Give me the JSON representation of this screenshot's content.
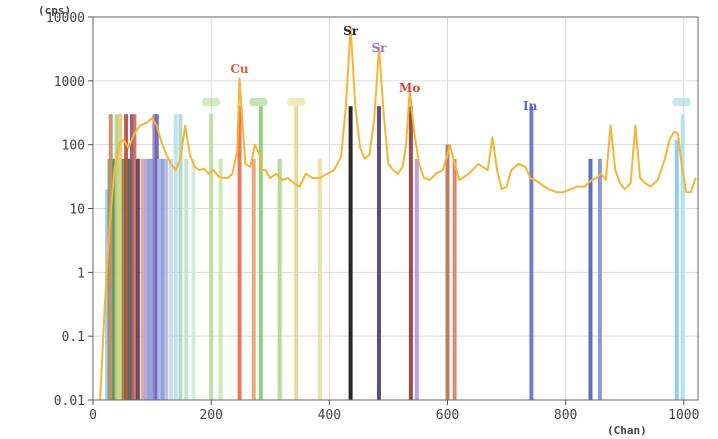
{
  "chart_data": {
    "type": "line",
    "title": "",
    "xlabel": "(Chan)",
    "ylabel": "(cps)",
    "xlim": [
      0,
      1024
    ],
    "ylim": [
      0.01,
      10000
    ],
    "y_scale": "log",
    "x_ticks": [
      0,
      200,
      400,
      600,
      800,
      1000
    ],
    "x_tick_labels": [
      "0",
      "200",
      "400",
      "600",
      "800",
      "1000"
    ],
    "y_ticks": [
      0.01,
      0.1,
      1,
      10,
      100,
      1000,
      10000
    ],
    "y_tick_labels": [
      "0.01",
      "0.1",
      "1",
      "10",
      "100",
      "1000",
      "10000"
    ],
    "grid": true,
    "spectrum": {
      "color": "#f5b535",
      "x": [
        12,
        20,
        28,
        36,
        44,
        52,
        60,
        70,
        80,
        90,
        100,
        108,
        116,
        124,
        132,
        140,
        148,
        156,
        164,
        172,
        180,
        188,
        196,
        204,
        212,
        220,
        228,
        236,
        244,
        248,
        252,
        258,
        266,
        274,
        282,
        286,
        292,
        300,
        310,
        320,
        330,
        340,
        350,
        360,
        372,
        384,
        396,
        408,
        420,
        428,
        436,
        444,
        452,
        460,
        468,
        476,
        484,
        492,
        500,
        508,
        516,
        524,
        530,
        536,
        544,
        552,
        560,
        570,
        580,
        592,
        600,
        604,
        610,
        620,
        636,
        652,
        668,
        676,
        684,
        692,
        700,
        708,
        720,
        732,
        740,
        748,
        756,
        764,
        772,
        784,
        796,
        808,
        820,
        832,
        844,
        852,
        860,
        868,
        876,
        884,
        892,
        900,
        910,
        918,
        926,
        934,
        944,
        956,
        968,
        976,
        984,
        990,
        996,
        1004,
        1012,
        1020
      ],
      "y": [
        0.01,
        0.3,
        5,
        40,
        100,
        120,
        90,
        150,
        200,
        220,
        260,
        200,
        110,
        70,
        50,
        40,
        60,
        200,
        70,
        45,
        40,
        42,
        35,
        40,
        32,
        30,
        30,
        35,
        80,
        1100,
        300,
        50,
        45,
        100,
        70,
        40,
        40,
        30,
        35,
        28,
        30,
        25,
        22,
        35,
        30,
        30,
        35,
        40,
        65,
        400,
        7000,
        400,
        90,
        60,
        70,
        250,
        3300,
        300,
        50,
        40,
        35,
        45,
        100,
        700,
        150,
        50,
        30,
        28,
        35,
        40,
        70,
        100,
        60,
        28,
        35,
        50,
        40,
        130,
        40,
        20,
        22,
        40,
        50,
        45,
        30,
        28,
        25,
        22,
        20,
        18,
        18,
        20,
        22,
        22,
        28,
        30,
        35,
        28,
        200,
        40,
        25,
        20,
        25,
        200,
        30,
        25,
        22,
        28,
        60,
        120,
        160,
        150,
        50,
        18,
        18,
        30
      ]
    },
    "peak_labels": [
      {
        "text": "Cu",
        "x": 248,
        "color": "#e05a3c"
      },
      {
        "text": "Sr",
        "x": 436,
        "color": "#222222"
      },
      {
        "text": "Sr",
        "x": 484,
        "color": "#9a6fd0"
      },
      {
        "text": "Mo",
        "x": 536,
        "color": "#c94a3a"
      },
      {
        "text": "In",
        "x": 740,
        "color": "#5a6ec8"
      }
    ],
    "faint_labels": [
      {
        "x": 200,
        "color": "#9fd36a"
      },
      {
        "x": 280,
        "color": "#7cc25a"
      },
      {
        "x": 344,
        "color": "#d7d070"
      },
      {
        "x": 996,
        "color": "#7fc7e2"
      }
    ],
    "markers": [
      {
        "x": 24,
        "y": 20,
        "color": "#9ec3ee"
      },
      {
        "x": 28,
        "y": 60,
        "color": "#6aa85a"
      },
      {
        "x": 30,
        "y": 300,
        "color": "#c48a70"
      },
      {
        "x": 36,
        "y": 60,
        "color": "#4e8a4a"
      },
      {
        "x": 40,
        "y": 300,
        "color": "#a8d48a"
      },
      {
        "x": 46,
        "y": 300,
        "color": "#e8c870"
      },
      {
        "x": 52,
        "y": 60,
        "color": "#6e8850"
      },
      {
        "x": 56,
        "y": 300,
        "color": "#b04c3a"
      },
      {
        "x": 62,
        "y": 60,
        "color": "#3a6a3a"
      },
      {
        "x": 66,
        "y": 300,
        "color": "#8a4a8a"
      },
      {
        "x": 70,
        "y": 300,
        "color": "#c86a4a"
      },
      {
        "x": 76,
        "y": 60,
        "color": "#5a3a5a"
      },
      {
        "x": 84,
        "y": 60,
        "color": "#d8a0a0"
      },
      {
        "x": 90,
        "y": 60,
        "color": "#b0a0d8"
      },
      {
        "x": 96,
        "y": 60,
        "color": "#8890d0"
      },
      {
        "x": 100,
        "y": 60,
        "color": "#a0a0e0"
      },
      {
        "x": 104,
        "y": 300,
        "color": "#9080c8"
      },
      {
        "x": 108,
        "y": 300,
        "color": "#7060a8"
      },
      {
        "x": 112,
        "y": 60,
        "color": "#a8b8e8"
      },
      {
        "x": 118,
        "y": 60,
        "color": "#8898d8"
      },
      {
        "x": 124,
        "y": 60,
        "color": "#b8b8e0"
      },
      {
        "x": 132,
        "y": 60,
        "color": "#c8d8f0"
      },
      {
        "x": 140,
        "y": 300,
        "color": "#b8e0e8"
      },
      {
        "x": 148,
        "y": 300,
        "color": "#a8d8c8"
      },
      {
        "x": 158,
        "y": 60,
        "color": "#c0e0d0"
      },
      {
        "x": 170,
        "y": 60,
        "color": "#d0e8d8"
      },
      {
        "x": 200,
        "y": 300,
        "color": "#b8dc9a"
      },
      {
        "x": 216,
        "y": 60,
        "color": "#c8e8a8"
      },
      {
        "x": 248,
        "y": 400,
        "color": "#e86a48"
      },
      {
        "x": 272,
        "y": 60,
        "color": "#e8a070"
      },
      {
        "x": 284,
        "y": 400,
        "color": "#88c870"
      },
      {
        "x": 316,
        "y": 60,
        "color": "#a8d890"
      },
      {
        "x": 344,
        "y": 400,
        "color": "#e0d890"
      },
      {
        "x": 384,
        "y": 60,
        "color": "#e8e0a0"
      },
      {
        "x": 436,
        "y": 400,
        "color": "#111111"
      },
      {
        "x": 484,
        "y": 400,
        "color": "#4a3a6a"
      },
      {
        "x": 538,
        "y": 400,
        "color": "#8a3a3a"
      },
      {
        "x": 548,
        "y": 60,
        "color": "#b898d0"
      },
      {
        "x": 600,
        "y": 100,
        "color": "#b87050"
      },
      {
        "x": 612,
        "y": 60,
        "color": "#d88060"
      },
      {
        "x": 742,
        "y": 400,
        "color": "#6070c8"
      },
      {
        "x": 842,
        "y": 60,
        "color": "#5060b0"
      },
      {
        "x": 858,
        "y": 60,
        "color": "#8090d0"
      },
      {
        "x": 988,
        "y": 120,
        "color": "#88c8e0"
      },
      {
        "x": 998,
        "y": 300,
        "color": "#a8e0f0"
      }
    ]
  }
}
